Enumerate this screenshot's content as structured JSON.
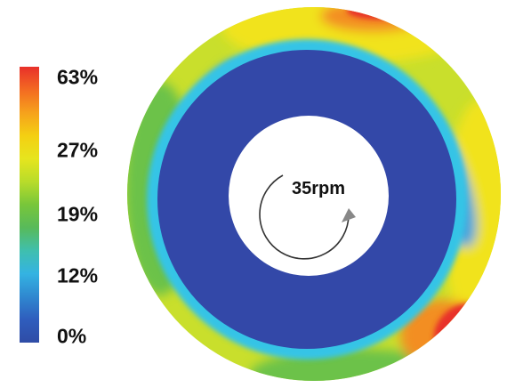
{
  "legend": {
    "ticks": [
      {
        "label": "63%",
        "value": 63
      },
      {
        "label": "27%",
        "value": 27
      },
      {
        "label": "19%",
        "value": 19
      },
      {
        "label": "12%",
        "value": 12
      },
      {
        "label": "0%",
        "value": 0
      }
    ],
    "colors": [
      "#e8302a",
      "#f36a22",
      "#f6a21c",
      "#f4cf12",
      "#e6e51e",
      "#b8dc2a",
      "#78c63a",
      "#58ba5a",
      "#3fbfae",
      "#34b3e2",
      "#2f88d0",
      "#2f5dbd",
      "#2f4ca6"
    ]
  },
  "plot": {
    "speed_label": "35rpm",
    "colors": {
      "inner": "#3348a8",
      "cyan": "#35c4e6",
      "light_blue": "#4aa6dd",
      "green": "#6cc24a",
      "yellow": "#f1e31c",
      "orange": "#f38e22",
      "red": "#e8302a",
      "core": "#ffffff"
    }
  }
}
